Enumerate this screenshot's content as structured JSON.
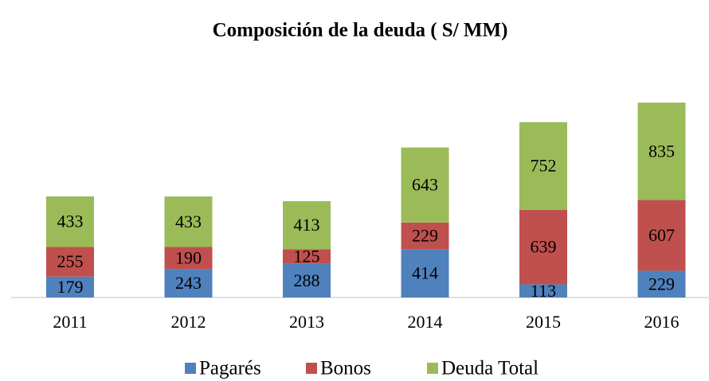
{
  "chart_data": {
    "type": "stacked_bar",
    "title": "Composición de la deuda ( S/ MM)",
    "categories": [
      "2011",
      "2012",
      "2013",
      "2014",
      "2015",
      "2016"
    ],
    "series": [
      {
        "name": "Pagarés",
        "color": "#4f81bd",
        "values": [
          179,
          243,
          288,
          414,
          113,
          229
        ]
      },
      {
        "name": "Bonos",
        "color": "#c0504d",
        "values": [
          255,
          190,
          125,
          229,
          639,
          607
        ]
      },
      {
        "name": "Deuda Total",
        "color": "#9bbb59",
        "values": [
          433,
          433,
          413,
          643,
          752,
          835
        ]
      }
    ],
    "legend": "bottom"
  }
}
